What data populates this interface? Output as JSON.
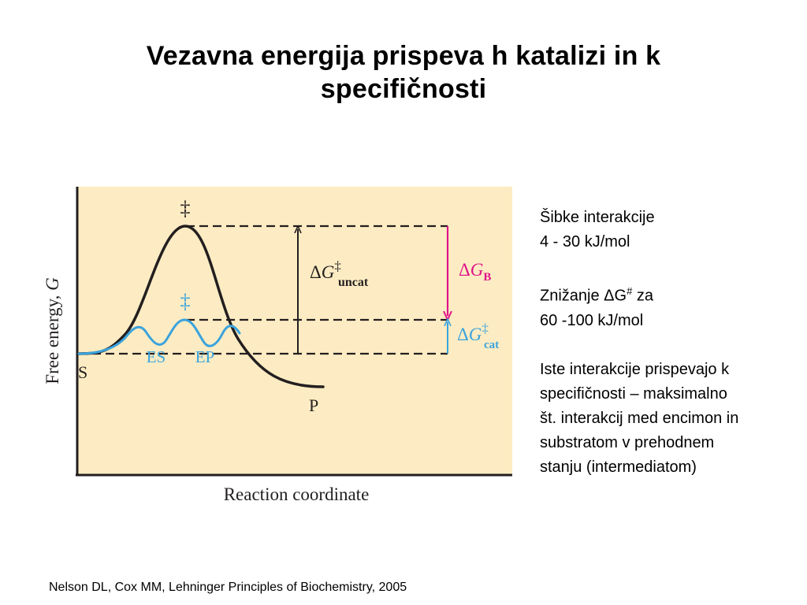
{
  "title": {
    "line1": "Vezavna energija prispeva h katalizi in k",
    "line2": "specifičnosti"
  },
  "diagram": {
    "y_axis_label_text": "Free energy, ",
    "y_axis_label_symbol": "G",
    "x_axis_label": "Reaction coordinate",
    "label_S": "S",
    "label_P": "P",
    "label_ES": "ES",
    "label_EP": "EP",
    "ts_uncat": "‡",
    "ts_cat": "‡",
    "dg_uncat_delta": "Δ",
    "dg_uncat_G": "G",
    "dg_uncat_sup": "‡",
    "dg_uncat_sub": "uncat",
    "dg_b_delta": "Δ",
    "dg_b_G": "G",
    "dg_b_sub": "B",
    "dg_cat_delta": "Δ",
    "dg_cat_G": "G",
    "dg_cat_sup": "‡",
    "dg_cat_sub": "cat",
    "colors": {
      "background": "#fdecc3",
      "uncatalyzed": "#231f20",
      "catalyzed": "#3aa3dd",
      "binding_energy": "#e0148a"
    }
  },
  "notes": {
    "p1_line1": "Šibke interakcije",
    "p1_line2": "4 - 30 kJ/mol",
    "p2_line1_pre": "Znižanje ΔG",
    "p2_line1_sup": "#",
    "p2_line1_post": " za",
    "p2_line2": "60 -100 kJ/mol",
    "p3_line1": "Iste interakcije prispevajo k",
    "p3_line2": "specifičnosti – maksimalno",
    "p3_line3": "št. interakcij med encimon in",
    "p3_line4": "substratom v prehodnem",
    "p3_line5": "stanju (intermediatom)"
  },
  "citation": "Nelson DL, Cox MM, Lehninger Principles of Biochemistry, 2005"
}
